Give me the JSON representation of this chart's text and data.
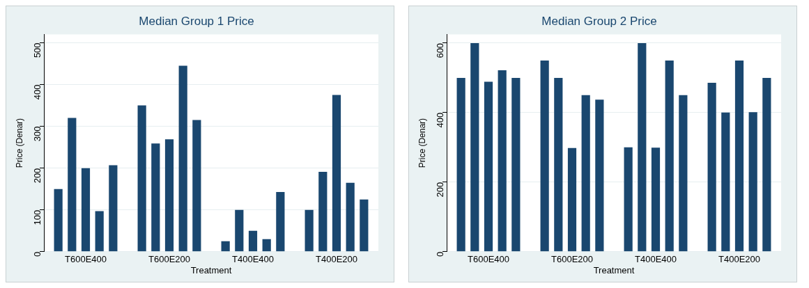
{
  "chart_data": [
    {
      "type": "bar",
      "title": "Median Group 1 Price",
      "xlabel": "Treatment",
      "ylabel": "Price (Denar)",
      "categories": [
        "T600E400",
        "T600E200",
        "T400E400",
        "T400E200"
      ],
      "ylim": [
        0,
        520
      ],
      "yticks": [
        0,
        100,
        200,
        300,
        400,
        500
      ],
      "grid": "y",
      "legend": false,
      "series": [
        {
          "color": "#1a476f",
          "values": [
            150,
            350,
            25,
            100
          ]
        },
        {
          "color": "#1a476f",
          "values": [
            320,
            259,
            100,
            191
          ]
        },
        {
          "color": "#1a476f",
          "values": [
            200,
            269,
            50,
            375
          ]
        },
        {
          "color": "#1a476f",
          "values": [
            97,
            445,
            30,
            165
          ]
        },
        {
          "color": "#1a476f",
          "values": [
            207,
            315,
            143,
            125
          ]
        }
      ]
    },
    {
      "type": "bar",
      "title": "Median Group 2 Price",
      "xlabel": "Treatment",
      "ylabel": "Price (Denar)",
      "categories": [
        "T600E400",
        "T600E200",
        "T400E400",
        "T400E200"
      ],
      "ylim": [
        0,
        625
      ],
      "yticks": [
        0,
        200,
        400,
        600
      ],
      "grid": "y",
      "legend": false,
      "series": [
        {
          "color": "#1a476f",
          "values": [
            500,
            550,
            300,
            486
          ]
        },
        {
          "color": "#1a476f",
          "values": [
            600,
            500,
            600,
            400
          ]
        },
        {
          "color": "#1a476f",
          "values": [
            489,
            298,
            299,
            550
          ]
        },
        {
          "color": "#1a476f",
          "values": [
            522,
            450,
            550,
            401
          ]
        },
        {
          "color": "#1a476f",
          "values": [
            500,
            437,
            450,
            500
          ]
        }
      ]
    }
  ]
}
